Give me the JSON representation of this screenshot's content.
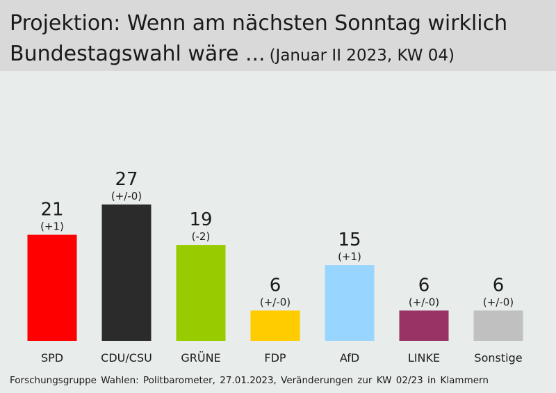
{
  "header": {
    "title_line1": "Projektion: Wenn am nächsten Sonntag wirklich",
    "title_line2": "Bundestagswahl wäre ...",
    "subtitle": "(Januar II 2023, KW 04)"
  },
  "footer": {
    "source": "Forschungsgruppe Wahlen: Politbarometer, 27.01.2023, Veränderungen zur KW 02/23 in Klammern"
  },
  "chart_data": {
    "type": "bar",
    "title": "Projektion: Wenn am nächsten Sonntag wirklich Bundestagswahl wäre ...",
    "subtitle": "(Januar II 2023, KW 04)",
    "categories": [
      "SPD",
      "CDU/CSU",
      "GRÜNE",
      "FDP",
      "AfD",
      "LINKE",
      "Sonstige"
    ],
    "values": [
      21,
      27,
      19,
      6,
      15,
      6,
      6
    ],
    "changes": [
      "(+1)",
      "(+/-0)",
      "(-2)",
      "(+/-0)",
      "(+1)",
      "(+/-0)",
      "(+/-0)"
    ],
    "colors": [
      "#ff0000",
      "#2b2b2b",
      "#99cc00",
      "#ffcc00",
      "#99d6ff",
      "#993366",
      "#c0c0c0"
    ],
    "ylim": [
      0,
      27
    ],
    "grid": false,
    "legend": "none",
    "xlabel": "",
    "ylabel": ""
  }
}
